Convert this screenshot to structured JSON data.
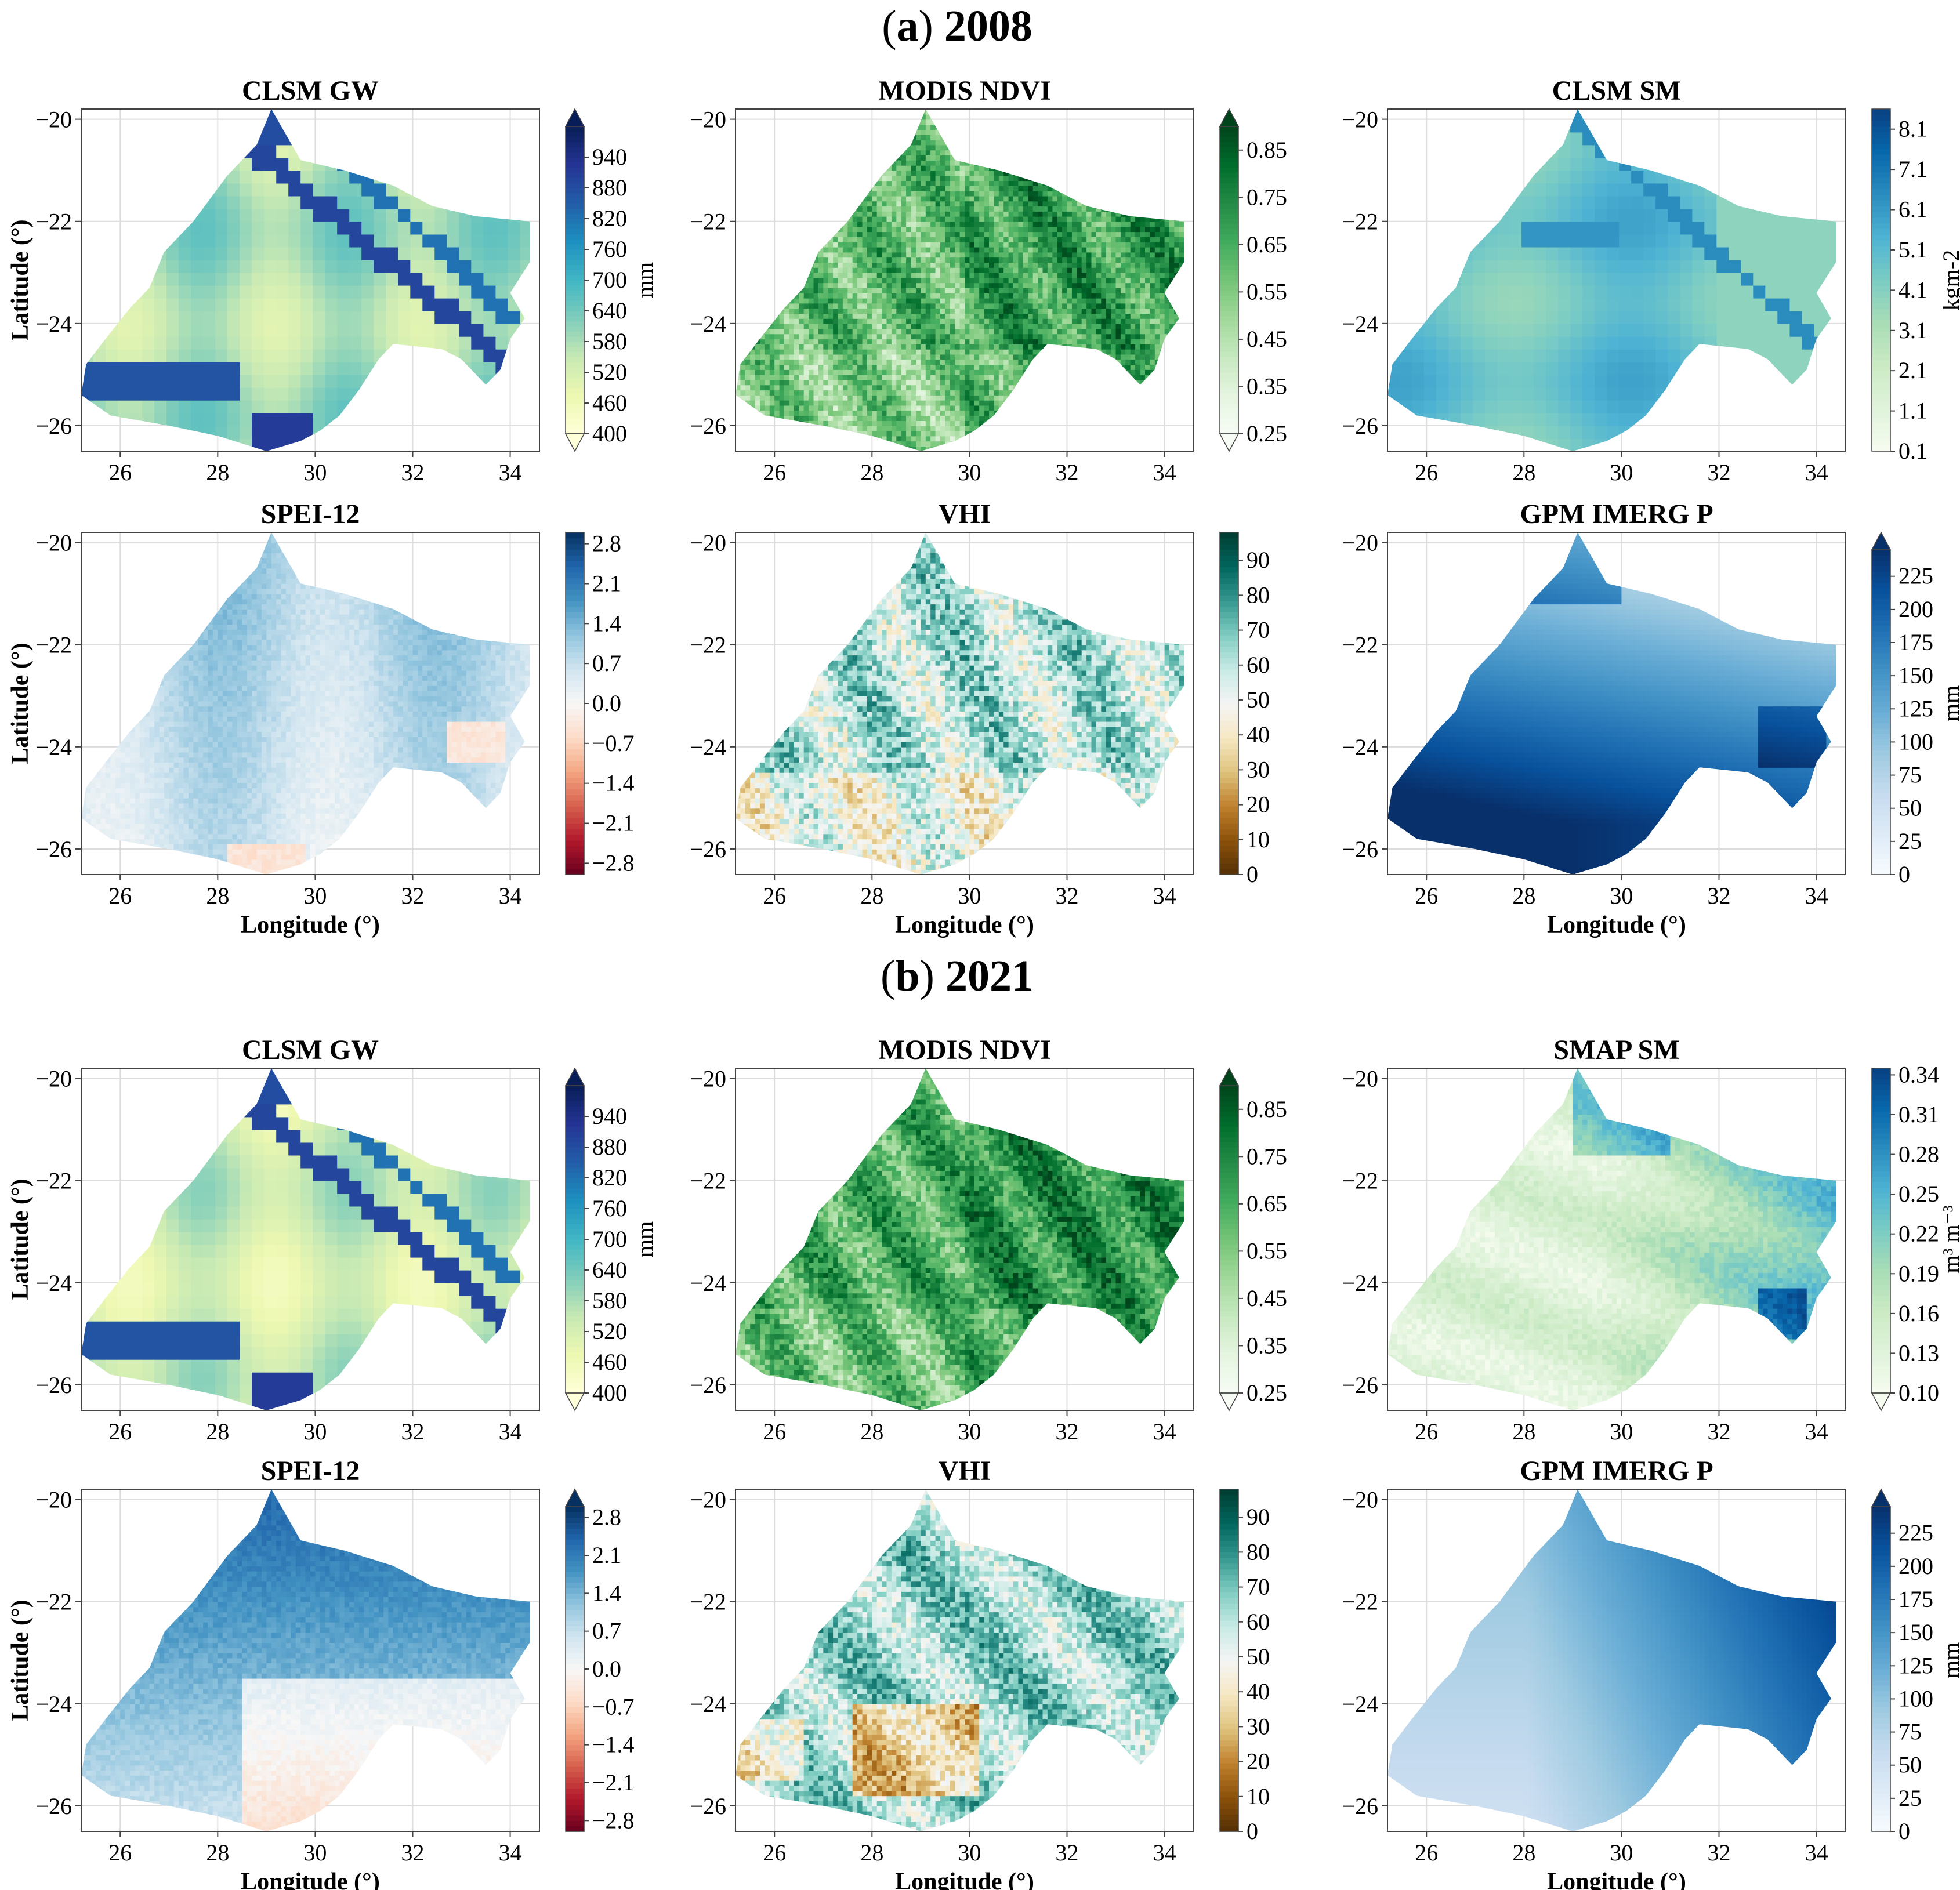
{
  "section_titles": [
    {
      "letter": "a",
      "year": "2008"
    },
    {
      "letter": "b",
      "year": "2021"
    }
  ],
  "xlabel": "Longitude (°)",
  "ylabel": "Latitude (°)",
  "x_ticks": [
    "26",
    "28",
    "30",
    "32",
    "34"
  ],
  "y_ticks": [
    "−20",
    "−22",
    "−24",
    "−26"
  ],
  "colormaps": {
    "YlGnBu": [
      "#ffffd9",
      "#edf8b1",
      "#c7e9b4",
      "#7fcdbb",
      "#41b6c4",
      "#1d91c0",
      "#225ea8",
      "#253494",
      "#081d58"
    ],
    "Greens": [
      "#f7fcf5",
      "#e5f5e0",
      "#c7e9c0",
      "#a1d99b",
      "#74c476",
      "#41ab5d",
      "#238b45",
      "#006d2c",
      "#00441b"
    ],
    "GnBu": [
      "#f7fcf0",
      "#e0f3db",
      "#ccebc5",
      "#a8ddb5",
      "#7bccc4",
      "#4eb3d3",
      "#2b8cbe",
      "#0868ac",
      "#084081"
    ],
    "RdBu": [
      "#67001f",
      "#b2182b",
      "#d6604d",
      "#f4a582",
      "#fddbc7",
      "#f7f7f7",
      "#d1e5f0",
      "#92c5de",
      "#4393c3",
      "#2166ac",
      "#053061"
    ],
    "BrBG": [
      "#543005",
      "#8c510a",
      "#bf812d",
      "#dfc27d",
      "#f6e8c3",
      "#f5f5f5",
      "#c7eae5",
      "#80cdc1",
      "#35978f",
      "#01665e",
      "#003c30"
    ],
    "Blues": [
      "#f7fbff",
      "#deebf7",
      "#c6dbef",
      "#9ecae1",
      "#6baed6",
      "#4292c6",
      "#2171b5",
      "#08519c",
      "#08306b"
    ]
  },
  "chart_data": [
    {
      "type": "heatmap",
      "section": "2008",
      "title": "CLSM GW",
      "cmap": "YlGnBu",
      "extend": "both",
      "vmin": 400,
      "vmax": 1000,
      "colorbar_ticks": [
        "400",
        "460",
        "520",
        "580",
        "640",
        "700",
        "760",
        "820",
        "880",
        "940"
      ],
      "colorbar_label": "mm",
      "xlim": [
        25.2,
        34.6
      ],
      "ylim": [
        -26.5,
        -19.8
      ],
      "xlabel": "",
      "ylabel": "Latitude (°)"
    },
    {
      "type": "heatmap",
      "section": "2008",
      "title": "MODIS NDVI",
      "cmap": "Greens",
      "extend": "both",
      "vmin": 0.25,
      "vmax": 0.9,
      "colorbar_ticks": [
        "0.25",
        "0.35",
        "0.45",
        "0.55",
        "0.65",
        "0.75",
        "0.85"
      ],
      "colorbar_label": "",
      "xlim": [
        25.2,
        34.6
      ],
      "ylim": [
        -26.5,
        -19.8
      ],
      "xlabel": "",
      "ylabel": ""
    },
    {
      "type": "heatmap",
      "section": "2008",
      "title": "CLSM SM",
      "cmap": "GnBu",
      "extend": "neither",
      "vmin": 0.1,
      "vmax": 8.6,
      "colorbar_ticks": [
        "0.1",
        "1.1",
        "2.1",
        "3.1",
        "4.1",
        "5.1",
        "6.1",
        "7.1",
        "8.1"
      ],
      "colorbar_label": "kgm-2",
      "xlim": [
        25.2,
        34.6
      ],
      "ylim": [
        -26.5,
        -19.8
      ],
      "xlabel": "",
      "ylabel": ""
    },
    {
      "type": "heatmap",
      "section": "2008",
      "title": "SPEI-12",
      "cmap": "RdBu",
      "extend": "neither",
      "vmin": -3.0,
      "vmax": 3.0,
      "colorbar_ticks": [
        "−2.8",
        "−2.1",
        "−1.4",
        "−0.7",
        "0.0",
        "0.7",
        "1.4",
        "2.1",
        "2.8"
      ],
      "colorbar_label": "",
      "xlim": [
        25.2,
        34.6
      ],
      "ylim": [
        -26.5,
        -19.8
      ],
      "xlabel": "Longitude (°)",
      "ylabel": "Latitude (°)"
    },
    {
      "type": "heatmap",
      "section": "2008",
      "title": "VHI",
      "cmap": "BrBG",
      "extend": "neither",
      "vmin": 0,
      "vmax": 98,
      "colorbar_ticks": [
        "0",
        "10",
        "20",
        "30",
        "40",
        "50",
        "60",
        "70",
        "80",
        "90"
      ],
      "colorbar_label": "",
      "xlim": [
        25.2,
        34.6
      ],
      "ylim": [
        -26.5,
        -19.8
      ],
      "xlabel": "Longitude (°)",
      "ylabel": ""
    },
    {
      "type": "heatmap",
      "section": "2008",
      "title": "GPM IMERG P",
      "cmap": "Blues",
      "extend": "max",
      "vmin": 0,
      "vmax": 245,
      "colorbar_ticks": [
        "0",
        "25",
        "50",
        "75",
        "100",
        "125",
        "150",
        "175",
        "200",
        "225"
      ],
      "colorbar_label": "mm",
      "xlim": [
        25.2,
        34.6
      ],
      "ylim": [
        -26.5,
        -19.8
      ],
      "xlabel": "Longitude (°)",
      "ylabel": ""
    },
    {
      "type": "heatmap",
      "section": "2021",
      "title": "CLSM GW",
      "cmap": "YlGnBu",
      "extend": "both",
      "vmin": 400,
      "vmax": 1000,
      "colorbar_ticks": [
        "400",
        "460",
        "520",
        "580",
        "640",
        "700",
        "760",
        "820",
        "880",
        "940"
      ],
      "colorbar_label": "mm",
      "xlim": [
        25.2,
        34.6
      ],
      "ylim": [
        -26.5,
        -19.8
      ],
      "xlabel": "",
      "ylabel": "Latitude (°)"
    },
    {
      "type": "heatmap",
      "section": "2021",
      "title": "MODIS NDVI",
      "cmap": "Greens",
      "extend": "both",
      "vmin": 0.25,
      "vmax": 0.9,
      "colorbar_ticks": [
        "0.25",
        "0.35",
        "0.45",
        "0.55",
        "0.65",
        "0.75",
        "0.85"
      ],
      "colorbar_label": "",
      "xlim": [
        25.2,
        34.6
      ],
      "ylim": [
        -26.5,
        -19.8
      ],
      "xlabel": "",
      "ylabel": ""
    },
    {
      "type": "heatmap",
      "section": "2021",
      "title": "SMAP SM",
      "cmap": "GnBu",
      "extend": "min",
      "vmin": 0.1,
      "vmax": 0.345,
      "colorbar_ticks": [
        "0.10",
        "0.13",
        "0.16",
        "0.19",
        "0.22",
        "0.25",
        "0.28",
        "0.31",
        "0.34"
      ],
      "colorbar_label": "m³ m⁻³",
      "xlim": [
        25.2,
        34.6
      ],
      "ylim": [
        -26.5,
        -19.8
      ],
      "xlabel": "",
      "ylabel": ""
    },
    {
      "type": "heatmap",
      "section": "2021",
      "title": "SPEI-12",
      "cmap": "RdBu",
      "extend": "max",
      "vmin": -3.0,
      "vmax": 3.0,
      "colorbar_ticks": [
        "−2.8",
        "−2.1",
        "−1.4",
        "−0.7",
        "0.0",
        "0.7",
        "1.4",
        "2.1",
        "2.8"
      ],
      "colorbar_label": "",
      "xlim": [
        25.2,
        34.6
      ],
      "ylim": [
        -26.5,
        -19.8
      ],
      "xlabel": "Longitude (°)",
      "ylabel": "Latitude (°)"
    },
    {
      "type": "heatmap",
      "section": "2021",
      "title": "VHI",
      "cmap": "BrBG",
      "extend": "neither",
      "vmin": 0,
      "vmax": 98,
      "colorbar_ticks": [
        "0",
        "10",
        "20",
        "30",
        "40",
        "50",
        "60",
        "70",
        "80",
        "90"
      ],
      "colorbar_label": "",
      "xlim": [
        25.2,
        34.6
      ],
      "ylim": [
        -26.5,
        -19.8
      ],
      "xlabel": "Longitude (°)",
      "ylabel": ""
    },
    {
      "type": "heatmap",
      "section": "2021",
      "title": "GPM IMERG P",
      "cmap": "Blues",
      "extend": "max",
      "vmin": 0,
      "vmax": 245,
      "colorbar_ticks": [
        "0",
        "25",
        "50",
        "75",
        "100",
        "125",
        "150",
        "175",
        "200",
        "225"
      ],
      "colorbar_label": "mm",
      "xlim": [
        25.2,
        34.6
      ],
      "ylim": [
        -26.5,
        -19.8
      ],
      "xlabel": "Longitude (°)",
      "ylabel": ""
    }
  ]
}
